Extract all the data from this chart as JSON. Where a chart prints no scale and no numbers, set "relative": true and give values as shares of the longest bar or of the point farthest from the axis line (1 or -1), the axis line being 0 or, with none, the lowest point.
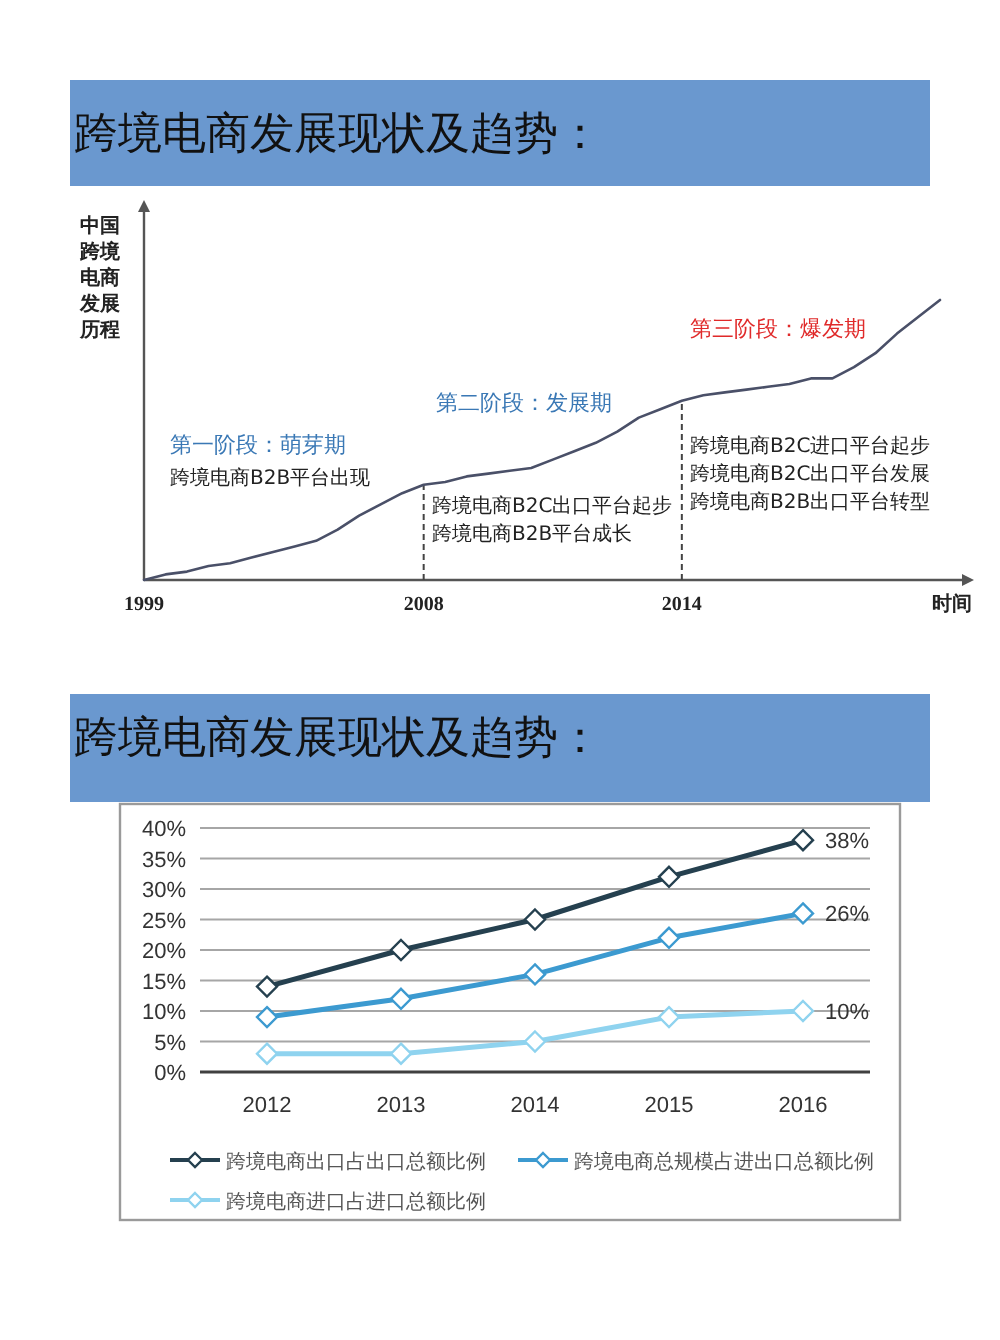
{
  "chart_data": [
    {
      "type": "line",
      "title": "跨境电商发展现状及趋势：",
      "xlabel": "时间",
      "ylabel": "中国跨境电商发展历程",
      "relative": true,
      "color": "#4a5068",
      "categories": [
        "1999",
        null,
        null,
        null,
        null,
        null,
        null,
        null,
        null,
        null,
        null,
        null,
        null,
        "2008",
        null,
        null,
        null,
        null,
        null,
        null,
        null,
        null,
        null,
        null,
        null,
        "2014",
        null,
        null,
        null,
        null,
        null,
        null,
        null,
        null,
        null,
        null,
        null,
        null
      ],
      "values": [
        0,
        0.02,
        0.03,
        0.05,
        0.06,
        0.08,
        0.1,
        0.12,
        0.14,
        0.18,
        0.23,
        0.27,
        0.31,
        0.34,
        0.35,
        0.37,
        0.38,
        0.39,
        0.4,
        0.43,
        0.46,
        0.49,
        0.53,
        0.58,
        0.61,
        0.64,
        0.66,
        0.67,
        0.68,
        0.69,
        0.7,
        0.72,
        0.72,
        0.76,
        0.81,
        0.88,
        0.94,
        1
      ],
      "ref_lines": [
        {
          "axis": "x",
          "value": "2008",
          "line_style": "dashed"
        },
        {
          "axis": "x",
          "value": "2014",
          "line_style": "dashed"
        }
      ],
      "annotations": [
        "第一阶段：萌芽期",
        "跨境电商B2B平台出现",
        "第二阶段：发展期",
        "跨境电商B2C出口平台起步",
        "跨境电商B2B平台成长",
        "第三阶段：爆发期",
        "跨境电商B2C进口平台起步",
        "跨境电商B2C出口平台发展",
        "跨境电商B2B出口平台转型"
      ]
    },
    {
      "type": "line",
      "title": "跨境电商发展现状及趋势：",
      "categories": [
        "2012",
        "2013",
        "2014",
        "2015",
        "2016"
      ],
      "series": [
        {
          "name": "跨境电商出口占出口总额比例",
          "color": "#25404f",
          "values": [
            14,
            20,
            25,
            32,
            38
          ],
          "value_labels": [
            null,
            null,
            null,
            null,
            "38%"
          ]
        },
        {
          "name": "跨境电商总规模占进出口总额比例",
          "color": "#3c9ad0",
          "values": [
            9,
            12,
            16,
            22,
            26
          ],
          "value_labels": [
            null,
            null,
            null,
            null,
            "26%"
          ]
        },
        {
          "name": "跨境电商进口占进口总额比例",
          "color": "#8fd3ef",
          "values": [
            3,
            3,
            5,
            9,
            10
          ],
          "value_labels": [
            null,
            null,
            null,
            null,
            "10%"
          ]
        }
      ],
      "ylim": [
        0,
        40
      ],
      "yticks": [
        {
          "value": 0,
          "label": "0%"
        },
        {
          "value": 5,
          "label": "5%"
        },
        {
          "value": 10,
          "label": "10%"
        },
        {
          "value": 15,
          "label": "15%"
        },
        {
          "value": 20,
          "label": "20%"
        },
        {
          "value": 25,
          "label": "25%"
        },
        {
          "value": 30,
          "label": "30%"
        },
        {
          "value": 35,
          "label": "35%"
        },
        {
          "value": 40,
          "label": "40%"
        }
      ],
      "grid": "y",
      "legend": "bottom",
      "marker": "diamond"
    }
  ]
}
